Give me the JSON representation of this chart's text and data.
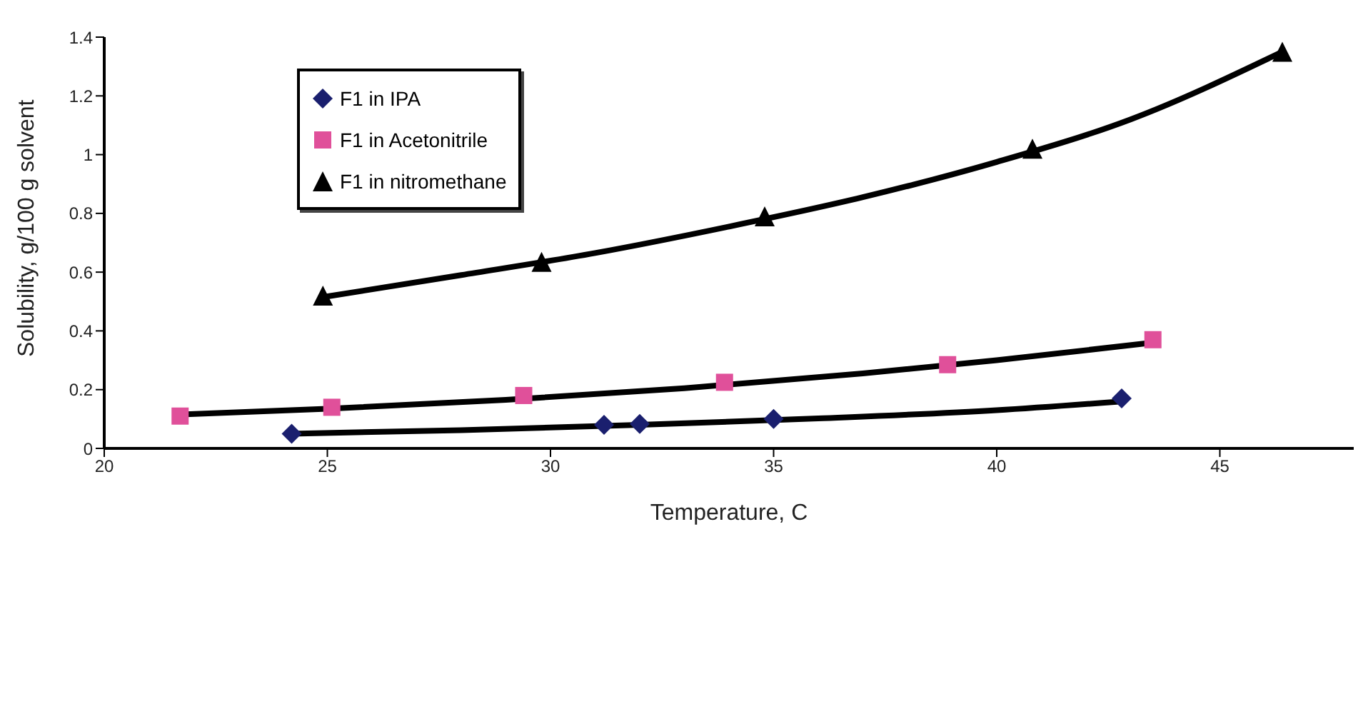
{
  "chart_data": {
    "type": "scatter",
    "xlabel": "Temperature, C",
    "ylabel": "Solubility, g/100 g solvent",
    "xlim": [
      20,
      48
    ],
    "xticks": [
      20,
      25,
      30,
      35,
      40,
      45
    ],
    "ylim": [
      0,
      1.4
    ],
    "yticks": [
      0,
      0.2,
      0.4,
      0.6,
      0.8,
      1,
      1.2,
      1.4
    ],
    "grid": false,
    "legend": "top left",
    "series": [
      {
        "name": "F1 in IPA",
        "color": "#1a1f6e",
        "marker": "diamond",
        "x": [
          24.2,
          31.2,
          32,
          35,
          42.8
        ],
        "values": [
          0.05,
          0.08,
          0.083,
          0.1,
          0.17
        ]
      },
      {
        "name": "F1 in Acetonitrile",
        "color": "#e0509a",
        "marker": "square",
        "x": [
          21.7,
          25.1,
          29.4,
          33.9,
          38.9,
          43.5
        ],
        "values": [
          0.11,
          0.14,
          0.18,
          0.225,
          0.285,
          0.37
        ]
      },
      {
        "name": "F1 in nitromethane",
        "color": "#000000",
        "marker": "triangle",
        "x": [
          24.9,
          29.8,
          34.8,
          40.8,
          46.4
        ],
        "values": [
          0.52,
          0.635,
          0.79,
          1.02,
          1.35
        ]
      },
      {
        "type": "line",
        "color": "#000000",
        "marker": "none",
        "x": [
          24.2,
          28,
          32,
          36,
          40,
          42.8
        ],
        "values": [
          0.05,
          0.062,
          0.08,
          0.102,
          0.13,
          0.16
        ]
      },
      {
        "type": "line",
        "color": "#000000",
        "marker": "none",
        "x": [
          21.7,
          25,
          29,
          33,
          37,
          40,
          43.5
        ],
        "values": [
          0.115,
          0.135,
          0.165,
          0.205,
          0.255,
          0.3,
          0.36
        ]
      },
      {
        "type": "line",
        "color": "#000000",
        "marker": "none",
        "x": [
          24.9,
          28,
          31,
          34,
          37,
          40,
          43,
          46.4
        ],
        "values": [
          0.515,
          0.59,
          0.665,
          0.755,
          0.855,
          0.975,
          1.12,
          1.35
        ]
      }
    ]
  }
}
